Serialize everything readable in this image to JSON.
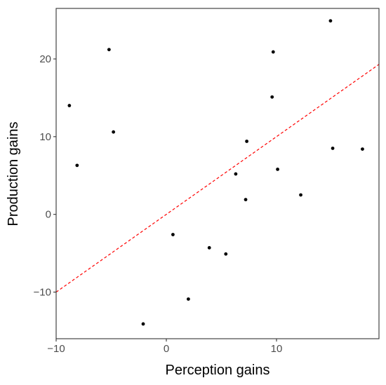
{
  "chart_data": {
    "type": "scatter",
    "title": "",
    "xlabel": "Perception gains",
    "ylabel": "Production gains",
    "xlim": [
      -10,
      19.3
    ],
    "ylim": [
      -16,
      26.5
    ],
    "x_ticks": [
      -10,
      0,
      10
    ],
    "y_ticks": [
      -10,
      0,
      10,
      20
    ],
    "x_tick_labels": [
      "−10",
      "0",
      "10"
    ],
    "y_tick_labels": [
      "−10",
      "0",
      "10",
      "20"
    ],
    "grid": false,
    "legend": "none",
    "point_color": "#000000",
    "reference_line": {
      "slope": 1,
      "intercept": 0,
      "style": "dashed",
      "color": "#ff0000"
    },
    "points": [
      {
        "x": -8.8,
        "y": 14.0
      },
      {
        "x": -8.1,
        "y": 6.3
      },
      {
        "x": -5.2,
        "y": 21.2
      },
      {
        "x": -4.8,
        "y": 10.6
      },
      {
        "x": -2.1,
        "y": -14.1
      },
      {
        "x": 0.6,
        "y": -2.6
      },
      {
        "x": 2.0,
        "y": -10.9
      },
      {
        "x": 3.9,
        "y": -4.3
      },
      {
        "x": 5.4,
        "y": -5.1
      },
      {
        "x": 6.3,
        "y": 5.2
      },
      {
        "x": 7.2,
        "y": 1.9
      },
      {
        "x": 7.3,
        "y": 9.4
      },
      {
        "x": 9.6,
        "y": 15.1
      },
      {
        "x": 9.7,
        "y": 20.9
      },
      {
        "x": 10.1,
        "y": 5.8
      },
      {
        "x": 12.2,
        "y": 2.5
      },
      {
        "x": 14.9,
        "y": 24.9
      },
      {
        "x": 15.1,
        "y": 8.5
      },
      {
        "x": 17.8,
        "y": 8.4
      }
    ]
  }
}
